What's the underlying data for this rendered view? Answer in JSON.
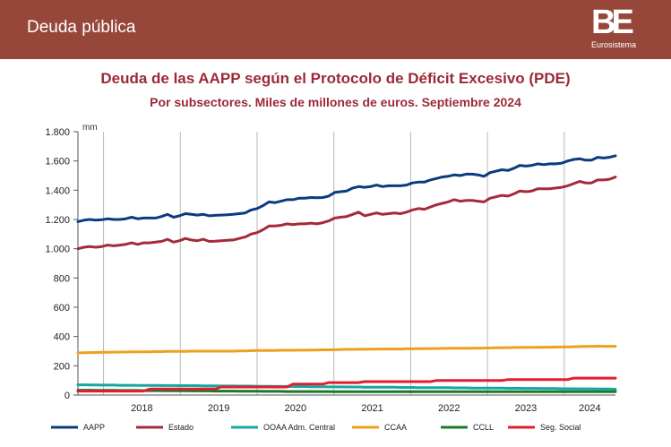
{
  "header": {
    "title": "Deuda pública",
    "logo_mark": "BE",
    "logo_sub": "Eurosistema"
  },
  "colors": {
    "banner": "#97473a",
    "title": "#9b2a37"
  },
  "chart_data": {
    "type": "line",
    "title": "Deuda de las AAPP según el Protocolo de Déficit Excesivo (PDE)",
    "subtitle": "Por subsectores. Miles de millones de euros. Septiembre 2024",
    "ylabel": "mm",
    "ylim": [
      0,
      1800
    ],
    "yticks": [
      0,
      200,
      400,
      600,
      800,
      1000,
      1200,
      1400,
      1600,
      1800
    ],
    "ytick_labels": [
      "0",
      "200",
      "400",
      "600",
      "800",
      "1.000",
      "1.200",
      "1.400",
      "1.600",
      "1.800"
    ],
    "years": [
      "2018",
      "2019",
      "2020",
      "2021",
      "2022",
      "2023",
      "2024"
    ],
    "x_start": "2017-09",
    "x_end": "2024-09",
    "grid": "vertical",
    "legend_position": "bottom",
    "series": [
      {
        "name": "AAPP",
        "color": "#0b3b7e",
        "values": [
          1185,
          1195,
          1200,
          1195,
          1198,
          1205,
          1200,
          1200,
          1205,
          1215,
          1205,
          1210,
          1210,
          1210,
          1220,
          1235,
          1215,
          1225,
          1240,
          1235,
          1230,
          1235,
          1225,
          1228,
          1230,
          1232,
          1235,
          1240,
          1245,
          1265,
          1275,
          1295,
          1320,
          1315,
          1325,
          1335,
          1335,
          1345,
          1345,
          1350,
          1348,
          1350,
          1360,
          1385,
          1390,
          1395,
          1415,
          1425,
          1420,
          1425,
          1435,
          1425,
          1430,
          1430,
          1430,
          1435,
          1450,
          1455,
          1455,
          1470,
          1480,
          1490,
          1495,
          1505,
          1500,
          1510,
          1510,
          1505,
          1495,
          1520,
          1530,
          1540,
          1535,
          1550,
          1570,
          1565,
          1570,
          1580,
          1575,
          1580,
          1580,
          1585,
          1600,
          1610,
          1615,
          1605,
          1605,
          1625,
          1620,
          1625,
          1635
        ]
      },
      {
        "name": "Estado",
        "color": "#a52a3a",
        "values": [
          1000,
          1010,
          1015,
          1010,
          1015,
          1025,
          1020,
          1025,
          1030,
          1040,
          1030,
          1040,
          1040,
          1045,
          1050,
          1065,
          1045,
          1055,
          1070,
          1060,
          1055,
          1065,
          1050,
          1052,
          1055,
          1058,
          1060,
          1070,
          1080,
          1100,
          1110,
          1130,
          1155,
          1155,
          1160,
          1170,
          1165,
          1170,
          1170,
          1175,
          1170,
          1178,
          1190,
          1210,
          1215,
          1220,
          1235,
          1250,
          1225,
          1235,
          1245,
          1235,
          1240,
          1245,
          1240,
          1250,
          1265,
          1275,
          1270,
          1285,
          1300,
          1310,
          1320,
          1335,
          1325,
          1330,
          1330,
          1325,
          1320,
          1345,
          1355,
          1365,
          1360,
          1375,
          1395,
          1390,
          1395,
          1410,
          1410,
          1410,
          1415,
          1420,
          1430,
          1445,
          1460,
          1450,
          1450,
          1470,
          1470,
          1475,
          1490
        ]
      },
      {
        "name": "OOAA Adm. Central",
        "color": "#14a8a0",
        "values": [
          70,
          70,
          69,
          69,
          68,
          68,
          68,
          67,
          67,
          67,
          66,
          66,
          66,
          66,
          65,
          65,
          65,
          64,
          64,
          64,
          64,
          63,
          63,
          63,
          62,
          62,
          62,
          61,
          61,
          61,
          60,
          60,
          60,
          59,
          59,
          59,
          58,
          58,
          58,
          57,
          57,
          57,
          56,
          56,
          56,
          55,
          55,
          55,
          54,
          54,
          54,
          53,
          53,
          53,
          52,
          52,
          52,
          51,
          51,
          51,
          50,
          50,
          50,
          49,
          49,
          49,
          48,
          48,
          48,
          47,
          47,
          47,
          46,
          46,
          46,
          45,
          45,
          45,
          44,
          44,
          44,
          43,
          43,
          43,
          42,
          42,
          42,
          41,
          41,
          41,
          40
        ]
      },
      {
        "name": "CCAA",
        "color": "#f0a020",
        "values": [
          288,
          289,
          290,
          291,
          292,
          292,
          293,
          294,
          294,
          295,
          295,
          296,
          296,
          297,
          297,
          298,
          298,
          299,
          299,
          300,
          300,
          300,
          300,
          300,
          300,
          300,
          300,
          301,
          302,
          303,
          304,
          305,
          305,
          305,
          306,
          306,
          306,
          307,
          307,
          308,
          308,
          309,
          309,
          310,
          311,
          312,
          312,
          313,
          313,
          314,
          314,
          315,
          315,
          315,
          315,
          316,
          316,
          317,
          317,
          318,
          318,
          319,
          319,
          320,
          320,
          320,
          320,
          321,
          321,
          322,
          323,
          324,
          324,
          325,
          325,
          326,
          326,
          326,
          327,
          327,
          328,
          328,
          329,
          330,
          331,
          332,
          333,
          334,
          333,
          333,
          333
        ]
      },
      {
        "name": "CCLL",
        "color": "#1a7a2a",
        "values": [
          33,
          33,
          33,
          32,
          32,
          32,
          32,
          31,
          31,
          31,
          31,
          30,
          30,
          30,
          30,
          29,
          29,
          29,
          29,
          28,
          28,
          28,
          28,
          27,
          27,
          27,
          27,
          26,
          26,
          26,
          26,
          25,
          25,
          25,
          25,
          24,
          24,
          24,
          24,
          24,
          24,
          24,
          24,
          23,
          23,
          23,
          23,
          23,
          23,
          23,
          23,
          23,
          23,
          23,
          23,
          23,
          23,
          23,
          23,
          23,
          23,
          23,
          23,
          23,
          23,
          23,
          23,
          23,
          23,
          23,
          23,
          23,
          23,
          23,
          23,
          23,
          23,
          23,
          23,
          23,
          23,
          23,
          23,
          23,
          23,
          23,
          23,
          23,
          23,
          23,
          23
        ]
      },
      {
        "name": "Seg. Social",
        "color": "#e01e2e",
        "values": [
          27,
          27,
          27,
          27,
          27,
          27,
          27,
          27,
          27,
          27,
          27,
          27,
          41,
          41,
          41,
          41,
          41,
          41,
          41,
          41,
          41,
          41,
          41,
          41,
          55,
          55,
          55,
          55,
          55,
          55,
          55,
          55,
          55,
          55,
          55,
          55,
          75,
          75,
          75,
          75,
          75,
          75,
          85,
          85,
          85,
          85,
          85,
          85,
          92,
          92,
          92,
          92,
          92,
          92,
          92,
          92,
          92,
          92,
          92,
          92,
          99,
          99,
          99,
          99,
          99,
          99,
          99,
          99,
          99,
          99,
          99,
          99,
          106,
          106,
          106,
          106,
          106,
          106,
          106,
          106,
          106,
          106,
          106,
          116,
          116,
          116,
          116,
          116,
          116,
          116,
          116
        ]
      }
    ]
  }
}
